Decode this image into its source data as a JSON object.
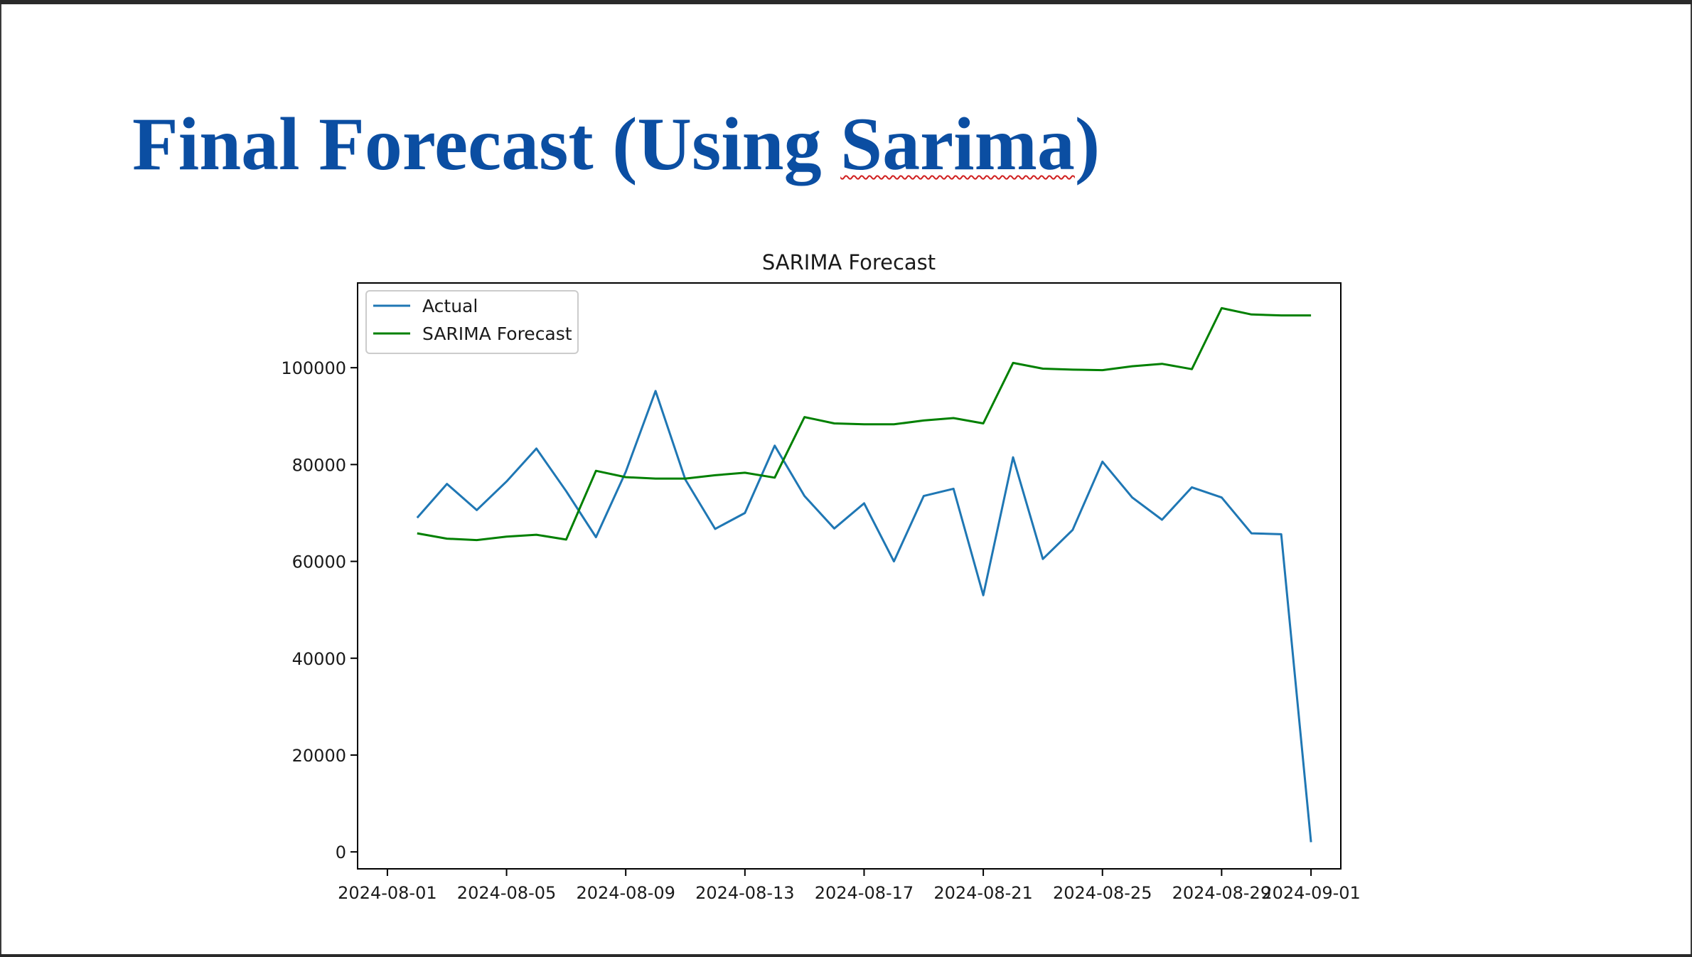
{
  "slide": {
    "title_main": "Final Forecast (Using ",
    "title_highlight": "Sarima",
    "title_end": ")"
  },
  "chart_data": {
    "type": "line",
    "title": "SARIMA Forecast",
    "xlabel": "",
    "ylabel": "",
    "x_ticks": [
      "2024-08-01",
      "2024-08-05",
      "2024-08-09",
      "2024-08-13",
      "2024-08-17",
      "2024-08-21",
      "2024-08-25",
      "2024-08-29",
      "2024-09-01"
    ],
    "y_ticks": [
      0,
      20000,
      40000,
      60000,
      80000,
      100000
    ],
    "ylim": [
      -3500,
      117500
    ],
    "xlim": [
      "2024-07-31",
      "2024-09-02"
    ],
    "grid": false,
    "legend": "upper-left",
    "x": [
      "2024-08-02",
      "2024-08-03",
      "2024-08-04",
      "2024-08-05",
      "2024-08-06",
      "2024-08-07",
      "2024-08-08",
      "2024-08-09",
      "2024-08-10",
      "2024-08-11",
      "2024-08-12",
      "2024-08-13",
      "2024-08-14",
      "2024-08-15",
      "2024-08-16",
      "2024-08-17",
      "2024-08-18",
      "2024-08-19",
      "2024-08-20",
      "2024-08-21",
      "2024-08-22",
      "2024-08-23",
      "2024-08-24",
      "2024-08-25",
      "2024-08-26",
      "2024-08-27",
      "2024-08-28",
      "2024-08-29",
      "2024-08-30",
      "2024-08-31",
      "2024-09-01"
    ],
    "series": [
      {
        "name": "Actual",
        "color": "#1f77b4",
        "values": [
          69000,
          76000,
          70600,
          76500,
          83300,
          74500,
          65000,
          78500,
          95200,
          76900,
          66700,
          70000,
          83900,
          73500,
          66800,
          72000,
          60000,
          73500,
          75000,
          53000,
          81500,
          60500,
          66500,
          80600,
          73200,
          68600,
          75300,
          73200,
          65800,
          65600,
          2000
        ]
      },
      {
        "name": "SARIMA Forecast",
        "color": "#008000",
        "values": [
          65800,
          64700,
          64400,
          65100,
          65500,
          64500,
          78700,
          77400,
          77100,
          77100,
          77800,
          78300,
          77300,
          89800,
          88500,
          88300,
          88300,
          89100,
          89600,
          88500,
          101000,
          99800,
          99600,
          99500,
          100300,
          100800,
          99700,
          112300,
          111000,
          110800,
          110800
        ]
      }
    ]
  }
}
